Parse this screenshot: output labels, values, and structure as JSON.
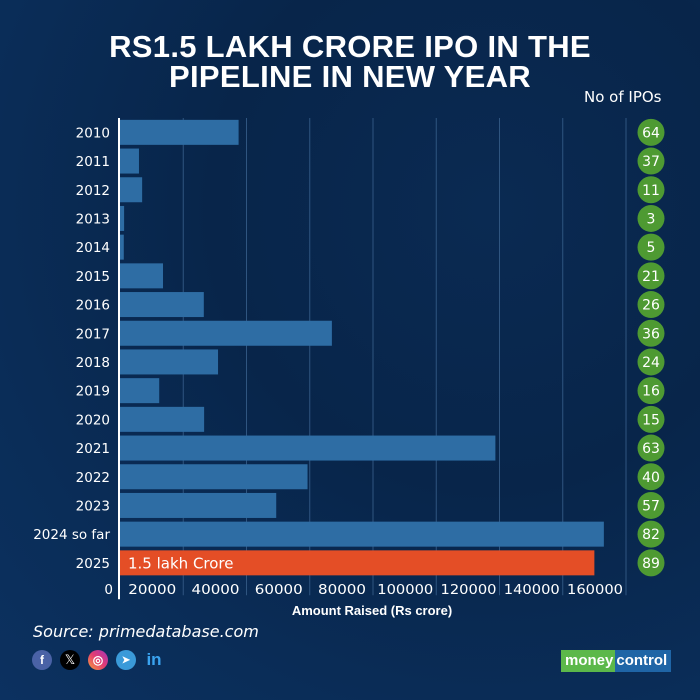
{
  "header": {
    "title_line1": "RS1.5 LAKH CRORE IPO IN THE",
    "title_line2": "PIPELINE IN NEW YEAR",
    "count_header": "No of IPOs"
  },
  "chart_data": {
    "type": "bar",
    "orientation": "horizontal",
    "title": "RS1.5 LAKH CRORE IPO IN THE PIPELINE IN NEW YEAR",
    "xlabel": "Amount Raised (Rs crore)",
    "ylabel": "",
    "xlim": [
      0,
      160000
    ],
    "grid": true,
    "x_ticks": [
      "0",
      "20000",
      "40000",
      "60000",
      "80000",
      "100000",
      "120000",
      "140000",
      "160000"
    ],
    "x_tick_values": [
      0,
      20000,
      40000,
      60000,
      80000,
      100000,
      120000,
      140000,
      160000
    ],
    "categories": [
      "2010",
      "2011",
      "2012",
      "2013",
      "2014",
      "2015",
      "2016",
      "2017",
      "2018",
      "2019",
      "2020",
      "2021",
      "2022",
      "2023",
      "2024 so far",
      "2025"
    ],
    "values": [
      37500,
      6000,
      7000,
      1300,
      1200,
      13600,
      26500,
      67000,
      31000,
      12400,
      26600,
      118700,
      59300,
      49400,
      153000,
      150000
    ],
    "ipo_counts": [
      "64",
      "37",
      "11",
      "3",
      "5",
      "21",
      "26",
      "36",
      "24",
      "16",
      "15",
      "63",
      "40",
      "57",
      "82",
      "89"
    ],
    "highlight_index": 15,
    "highlight_label": "1.5 lakh Crore",
    "colors": {
      "bar": "#2e6da4",
      "highlight": "#e44e26",
      "count_circle": "#4e9a32",
      "gridline": "#2f5580",
      "axis": "#ffffff"
    }
  },
  "footer": {
    "source": "Source: primedatabase.com",
    "social_icons": [
      "facebook-icon",
      "x-icon",
      "instagram-icon",
      "telegram-icon",
      "linkedin-icon"
    ],
    "social_glyphs": [
      "f",
      "𝕏",
      "◎",
      "➤",
      "in"
    ],
    "logo_part1": "money",
    "logo_part2": "control"
  }
}
